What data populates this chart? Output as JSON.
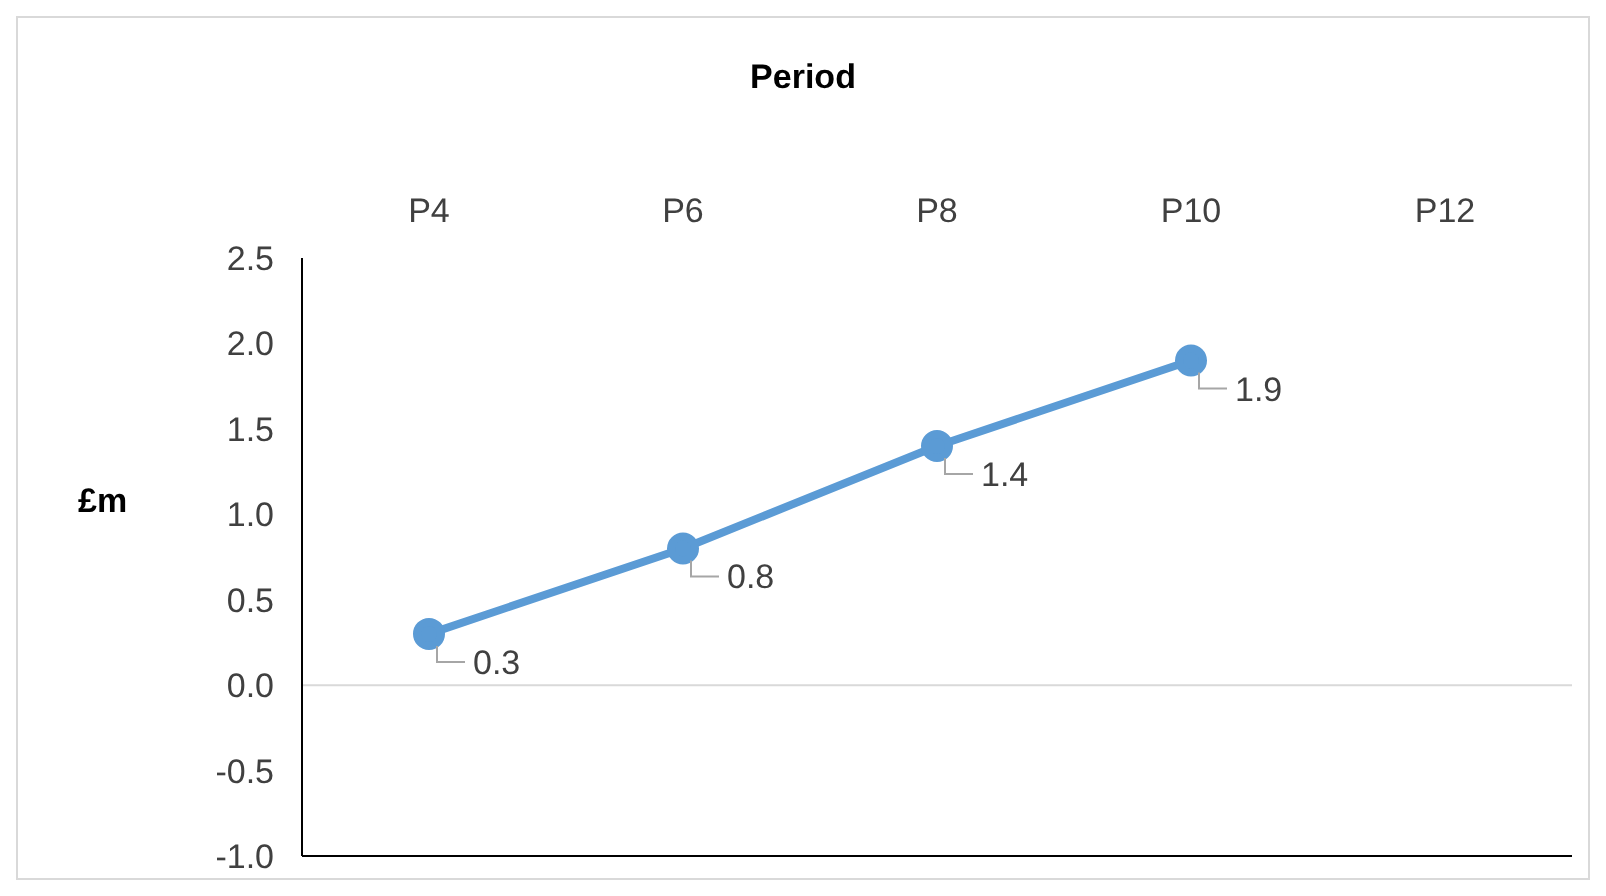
{
  "chart_data": {
    "type": "line",
    "title": "Period",
    "ylabel": "£m",
    "categories": [
      "P4",
      "P6",
      "P8",
      "P10",
      "P12"
    ],
    "series": [
      {
        "color": "#5b9bd5",
        "values": [
          0.3,
          0.8,
          1.4,
          1.9,
          null
        ]
      }
    ],
    "ylim": [
      -1,
      2.5
    ],
    "yticks": [
      {
        "value": -1,
        "label": "-1.0"
      },
      {
        "value": -0.5,
        "label": "-0.5"
      },
      {
        "value": 0,
        "label": "0.0"
      },
      {
        "value": 0.5,
        "label": "0.5"
      },
      {
        "value": 1,
        "label": "1.0"
      },
      {
        "value": 1.5,
        "label": "1.5"
      },
      {
        "value": 2,
        "label": "2.0"
      },
      {
        "value": 2.5,
        "label": "2.5"
      }
    ],
    "ref_lines": [
      {
        "axis": "y",
        "value": 0,
        "color": "#d9d9d9"
      }
    ],
    "marker": "circle",
    "line_style": "solid",
    "data_labels": true,
    "grid": false,
    "legend": false
  }
}
